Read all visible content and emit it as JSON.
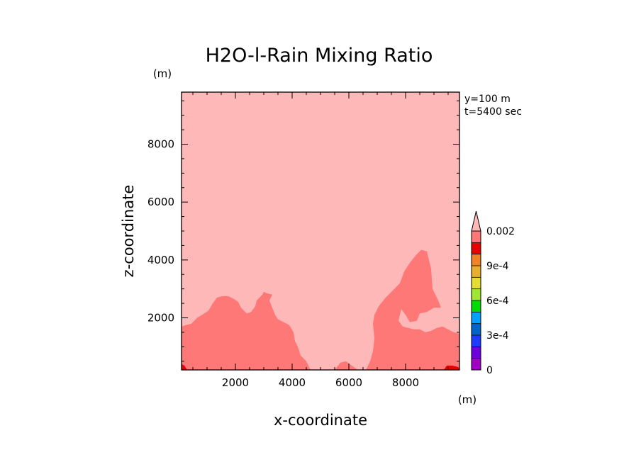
{
  "chart_data": {
    "type": "contour",
    "title": "H2O-l-Rain Mixing Ratio",
    "xlabel": "x-coordinate",
    "ylabel": "z-coordinate",
    "x_unit": "(m)",
    "y_unit": "(m)",
    "annotations": [
      "y=100 m",
      "t=5400 sec"
    ],
    "xlim": [
      100,
      9900
    ],
    "ylim": [
      200,
      9800
    ],
    "x_ticks": [
      2000,
      4000,
      6000,
      8000
    ],
    "y_ticks": [
      2000,
      4000,
      6000,
      8000
    ],
    "x_tick_labels": [
      "2000",
      "4000",
      "6000",
      "8000"
    ],
    "y_tick_labels": [
      "2000",
      "4000",
      "6000",
      "8000"
    ],
    "background_color": "#ffb8b8",
    "colorbar": {
      "levels": [
        0,
        0.0001,
        0.0002,
        0.0003,
        0.0004,
        0.0005,
        0.0006,
        0.0007,
        0.0008,
        0.0009,
        0.001,
        0.0015,
        0.002
      ],
      "colors": [
        "#a000c8",
        "#6e00dc",
        "#1e3cff",
        "#0064c8",
        "#00a0ff",
        "#00dc00",
        "#a0e632",
        "#e6dc32",
        "#e6af2d",
        "#f08228",
        "#e60000",
        "#ff7878"
      ],
      "extend_color": "#ffb8b8",
      "extend": "max",
      "tick_labels": [
        {
          "value": 0,
          "label": "0"
        },
        {
          "value": 0.0003,
          "label": "3e-4"
        },
        {
          "value": 0.0006,
          "label": "6e-4"
        },
        {
          "value": 0.0009,
          "label": "9e-4"
        },
        {
          "value": 0.002,
          "label": "0.002"
        }
      ]
    },
    "regions": [
      {
        "name": "left-rain-region",
        "color": "#ff7878",
        "points": [
          [
            100,
            200
          ],
          [
            100,
            1700
          ],
          [
            250,
            1750
          ],
          [
            450,
            1800
          ],
          [
            650,
            2000
          ],
          [
            900,
            2150
          ],
          [
            1050,
            2250
          ],
          [
            1200,
            2500
          ],
          [
            1350,
            2700
          ],
          [
            1550,
            2750
          ],
          [
            1750,
            2750
          ],
          [
            1950,
            2650
          ],
          [
            2100,
            2550
          ],
          [
            2200,
            2350
          ],
          [
            2400,
            2150
          ],
          [
            2550,
            2200
          ],
          [
            2700,
            2400
          ],
          [
            2750,
            2600
          ],
          [
            2950,
            2800
          ],
          [
            3000,
            2900
          ],
          [
            3100,
            2850
          ],
          [
            3300,
            2800
          ],
          [
            3200,
            2600
          ],
          [
            3300,
            2350
          ],
          [
            3400,
            2100
          ],
          [
            3500,
            1950
          ],
          [
            3700,
            1850
          ],
          [
            3900,
            1750
          ],
          [
            4050,
            1500
          ],
          [
            4100,
            1200
          ],
          [
            4200,
            1000
          ],
          [
            4300,
            700
          ],
          [
            4500,
            500
          ],
          [
            4600,
            300
          ],
          [
            4650,
            200
          ]
        ]
      },
      {
        "name": "center-rain-patch",
        "color": "#ff7878",
        "points": [
          [
            5500,
            200
          ],
          [
            5700,
            450
          ],
          [
            5900,
            500
          ],
          [
            6100,
            350
          ],
          [
            6250,
            250
          ],
          [
            6300,
            200
          ]
        ]
      },
      {
        "name": "right-rain-region",
        "color": "#ff7878",
        "points": [
          [
            6600,
            200
          ],
          [
            6750,
            500
          ],
          [
            6850,
            850
          ],
          [
            6900,
            1300
          ],
          [
            6850,
            1800
          ],
          [
            6900,
            2100
          ],
          [
            7050,
            2400
          ],
          [
            7300,
            2700
          ],
          [
            7600,
            3000
          ],
          [
            7800,
            3200
          ],
          [
            7950,
            3600
          ],
          [
            8150,
            3900
          ],
          [
            8350,
            4150
          ],
          [
            8550,
            4350
          ],
          [
            8750,
            4300
          ],
          [
            8900,
            3700
          ],
          [
            8950,
            3000
          ],
          [
            9050,
            2800
          ],
          [
            9150,
            2600
          ],
          [
            9250,
            2350
          ],
          [
            9000,
            2350
          ],
          [
            8750,
            2200
          ],
          [
            8500,
            2150
          ],
          [
            8400,
            1900
          ],
          [
            8150,
            1850
          ],
          [
            8000,
            2100
          ],
          [
            7850,
            2300
          ],
          [
            7750,
            1900
          ],
          [
            7900,
            1700
          ],
          [
            8100,
            1650
          ],
          [
            8300,
            1600
          ],
          [
            8500,
            1600
          ],
          [
            8700,
            1500
          ],
          [
            8900,
            1550
          ],
          [
            9100,
            1650
          ],
          [
            9300,
            1700
          ],
          [
            9500,
            1600
          ],
          [
            9700,
            1500
          ],
          [
            9900,
            1450
          ],
          [
            9900,
            200
          ]
        ]
      },
      {
        "name": "left-corner-max",
        "color": "#e60000",
        "points": [
          [
            100,
            200
          ],
          [
            100,
            400
          ],
          [
            200,
            350
          ],
          [
            300,
            200
          ]
        ]
      },
      {
        "name": "right-corner-max",
        "color": "#e60000",
        "points": [
          [
            9350,
            200
          ],
          [
            9450,
            350
          ],
          [
            9650,
            350
          ],
          [
            9850,
            300
          ],
          [
            9900,
            250
          ],
          [
            9900,
            200
          ]
        ]
      }
    ]
  }
}
